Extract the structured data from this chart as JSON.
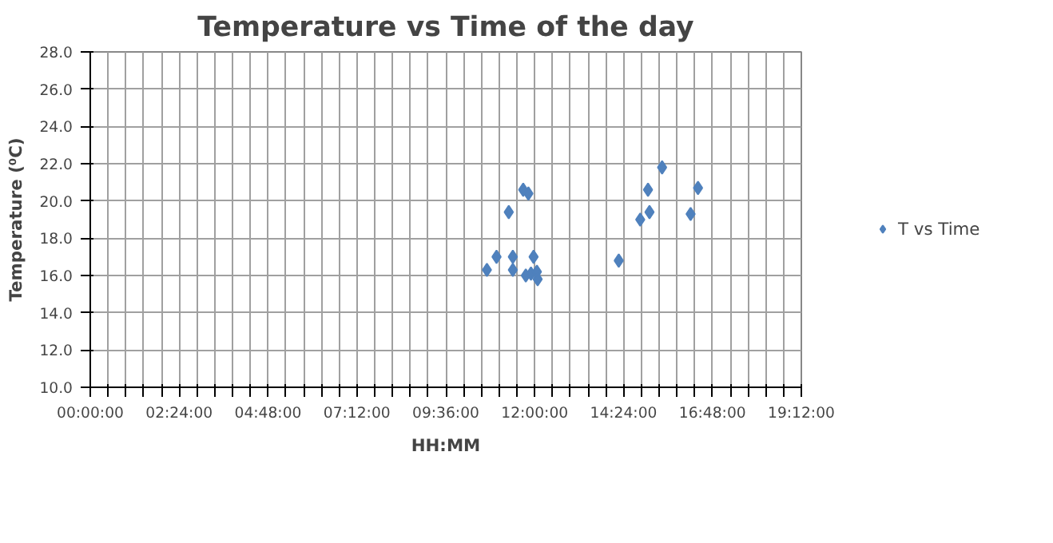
{
  "chart_data": {
    "type": "scatter",
    "title": "Temperature vs Time of the day",
    "xlabel": "HH:MM",
    "ylabel": "Temperature (⁰C)",
    "xlim": [
      0,
      19.2
    ],
    "ylim": [
      10,
      28
    ],
    "xticks": [
      {
        "value": 0,
        "label": "00:00:00"
      },
      {
        "value": 0.48,
        "label": null
      },
      {
        "value": 0.96,
        "label": null
      },
      {
        "value": 1.44,
        "label": null
      },
      {
        "value": 1.92,
        "label": null
      },
      {
        "value": 2.4,
        "label": "02:24:00"
      },
      {
        "value": 2.88,
        "label": null
      },
      {
        "value": 3.36,
        "label": null
      },
      {
        "value": 3.84,
        "label": null
      },
      {
        "value": 4.32,
        "label": null
      },
      {
        "value": 4.8,
        "label": "04:48:00"
      },
      {
        "value": 5.28,
        "label": null
      },
      {
        "value": 5.76,
        "label": null
      },
      {
        "value": 6.24,
        "label": null
      },
      {
        "value": 6.72,
        "label": null
      },
      {
        "value": 7.2,
        "label": "07:12:00"
      },
      {
        "value": 7.68,
        "label": null
      },
      {
        "value": 8.16,
        "label": null
      },
      {
        "value": 8.64,
        "label": null
      },
      {
        "value": 9.12,
        "label": null
      },
      {
        "value": 9.6,
        "label": "09:36:00"
      },
      {
        "value": 10.08,
        "label": null
      },
      {
        "value": 10.56,
        "label": null
      },
      {
        "value": 11.04,
        "label": null
      },
      {
        "value": 11.52,
        "label": null
      },
      {
        "value": 12,
        "label": "12:00:00"
      },
      {
        "value": 12.48,
        "label": null
      },
      {
        "value": 12.96,
        "label": null
      },
      {
        "value": 13.44,
        "label": null
      },
      {
        "value": 13.92,
        "label": null
      },
      {
        "value": 14.4,
        "label": "14:24:00"
      },
      {
        "value": 14.88,
        "label": null
      },
      {
        "value": 15.36,
        "label": null
      },
      {
        "value": 15.84,
        "label": null
      },
      {
        "value": 16.32,
        "label": null
      },
      {
        "value": 16.8,
        "label": "16:48:00"
      },
      {
        "value": 17.28,
        "label": null
      },
      {
        "value": 17.76,
        "label": null
      },
      {
        "value": 18.24,
        "label": null
      },
      {
        "value": 18.72,
        "label": null
      },
      {
        "value": 19.2,
        "label": "19:12:00"
      }
    ],
    "yticks": [
      {
        "value": 10,
        "label": "10.0"
      },
      {
        "value": 12,
        "label": "12.0"
      },
      {
        "value": 14,
        "label": "14.0"
      },
      {
        "value": 16,
        "label": "16.0"
      },
      {
        "value": 18,
        "label": "18.0"
      },
      {
        "value": 20,
        "label": "20.0"
      },
      {
        "value": 22,
        "label": "22.0"
      },
      {
        "value": 24,
        "label": "24.0"
      },
      {
        "value": 26,
        "label": "26.0"
      },
      {
        "value": 28,
        "label": "28.0"
      }
    ],
    "grid": true,
    "legend": "right",
    "marker": "diamond",
    "series": [
      {
        "name": "T vs Time",
        "color": "#4f81bd",
        "x": [
          10.71,
          10.97,
          11.3,
          11.41,
          11.41,
          11.69,
          11.83,
          11.97,
          11.76,
          11.9,
          12.06,
          12.08,
          14.27,
          14.85,
          15.1,
          15.06,
          15.44,
          16.21,
          16.41
        ],
        "values": [
          16.3,
          17.0,
          19.4,
          17.0,
          16.3,
          20.6,
          20.4,
          17.0,
          16.0,
          16.1,
          16.2,
          15.8,
          16.8,
          19.0,
          19.4,
          20.6,
          21.8,
          19.3,
          20.7
        ]
      }
    ]
  }
}
